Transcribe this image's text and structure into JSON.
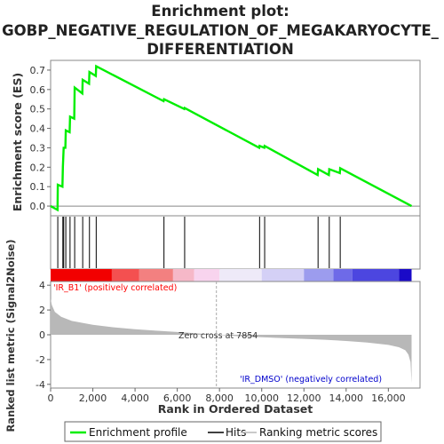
{
  "title_lines": [
    "Enrichment plot:",
    "GOBP_NEGATIVE_REGULATION_OF_MEGAKARYOCYTE_",
    "DIFFERENTIATION"
  ],
  "colors": {
    "es_line": "#00ee00",
    "hits": "#000000",
    "pos_label": "#ff0000",
    "neg_label": "#0000cc",
    "metric_fill": "#b8b8b8",
    "zero_cross_line": "#aaaaaa"
  },
  "legend": {
    "items": [
      {
        "label": "Enrichment profile",
        "kind": "line",
        "color": "#00ee00"
      },
      {
        "label": "Hits",
        "kind": "line",
        "color": "#000000"
      },
      {
        "label": "Ranking metric scores",
        "kind": "line",
        "color": "#b8b8b8"
      }
    ]
  },
  "chart_data": [
    {
      "type": "line",
      "name": "enrichment-profile",
      "ylabel": "Enrichment score (ES)",
      "xlim": [
        0,
        17500
      ],
      "ylim": [
        -0.05,
        0.75
      ],
      "yticks": [
        0.0,
        0.1,
        0.2,
        0.3,
        0.4,
        0.5,
        0.6,
        0.7
      ],
      "ytick_labels": [
        "0.0",
        "0.1",
        "0.2",
        "0.3",
        "0.4",
        "0.5",
        "0.6",
        "0.7"
      ],
      "points": [
        [
          0,
          0.0
        ],
        [
          330,
          -0.02
        ],
        [
          340,
          0.11
        ],
        [
          560,
          0.1
        ],
        [
          580,
          0.2
        ],
        [
          620,
          0.3
        ],
        [
          700,
          0.3
        ],
        [
          720,
          0.39
        ],
        [
          900,
          0.38
        ],
        [
          920,
          0.46
        ],
        [
          1120,
          0.45
        ],
        [
          1140,
          0.61
        ],
        [
          1500,
          0.58
        ],
        [
          1520,
          0.65
        ],
        [
          1820,
          0.63
        ],
        [
          1840,
          0.69
        ],
        [
          2140,
          0.67
        ],
        [
          2160,
          0.72
        ],
        [
          5350,
          0.54
        ],
        [
          5370,
          0.55
        ],
        [
          6330,
          0.5
        ],
        [
          6350,
          0.505
        ],
        [
          9880,
          0.3
        ],
        [
          9900,
          0.31
        ],
        [
          10120,
          0.3
        ],
        [
          10140,
          0.31
        ],
        [
          12650,
          0.16
        ],
        [
          12670,
          0.19
        ],
        [
          13180,
          0.16
        ],
        [
          13200,
          0.19
        ],
        [
          13700,
          0.17
        ],
        [
          13720,
          0.195
        ],
        [
          17100,
          0.0
        ]
      ]
    },
    {
      "type": "scatter",
      "name": "hits",
      "x": [
        340,
        580,
        620,
        720,
        920,
        1140,
        1520,
        1840,
        2160,
        5370,
        6350,
        9900,
        10140,
        12670,
        13200,
        13720
      ]
    },
    {
      "type": "area",
      "name": "ranking-metric",
      "xlabel": "Rank in Ordered Dataset",
      "ylabel": "Ranked list metric (Signal2Noise)",
      "xlim": [
        0,
        17500
      ],
      "ylim": [
        -4.3,
        4.3
      ],
      "yticks": [
        -4,
        -2,
        0,
        2,
        4
      ],
      "ytick_labels": [
        "-4",
        "-2",
        "0",
        "2",
        "4"
      ],
      "xticks": [
        0,
        2000,
        4000,
        6000,
        8000,
        10000,
        12000,
        14000,
        16000
      ],
      "xtick_labels": [
        "0",
        "2,000",
        "4,000",
        "6,000",
        "8,000",
        "10,000",
        "12,000",
        "14,000",
        "16,000"
      ],
      "points": [
        [
          0,
          2.9
        ],
        [
          60,
          2.4
        ],
        [
          200,
          1.85
        ],
        [
          500,
          1.45
        ],
        [
          1000,
          1.12
        ],
        [
          2000,
          0.8
        ],
        [
          3000,
          0.6
        ],
        [
          4000,
          0.45
        ],
        [
          5000,
          0.33
        ],
        [
          6000,
          0.22
        ],
        [
          7000,
          0.11
        ],
        [
          7854,
          0.0
        ],
        [
          9000,
          -0.12
        ],
        [
          10000,
          -0.2
        ],
        [
          11000,
          -0.27
        ],
        [
          12000,
          -0.33
        ],
        [
          13000,
          -0.4
        ],
        [
          14000,
          -0.5
        ],
        [
          15000,
          -0.62
        ],
        [
          16000,
          -0.82
        ],
        [
          16500,
          -1.0
        ],
        [
          16800,
          -1.25
        ],
        [
          16950,
          -1.6
        ],
        [
          17050,
          -2.2
        ],
        [
          17100,
          -3.9
        ]
      ],
      "zero_cross_x": 7854,
      "zero_cross_label": "Zero cross at 7854",
      "pos_label": "'IR_B1' (positively correlated)",
      "neg_label": "'IR_DMSO' (negatively correlated)"
    },
    {
      "type": "heatmap",
      "name": "rank-colorbar",
      "segments": [
        {
          "from": 0,
          "to": 2900,
          "color": "#f20000"
        },
        {
          "from": 2900,
          "to": 4200,
          "color": "#f45050"
        },
        {
          "from": 4200,
          "to": 5800,
          "color": "#f38080"
        },
        {
          "from": 5800,
          "to": 6800,
          "color": "#f6b8c8"
        },
        {
          "from": 6800,
          "to": 8000,
          "color": "#f8d4ee"
        },
        {
          "from": 8000,
          "to": 10000,
          "color": "#eeeaf8"
        },
        {
          "from": 10000,
          "to": 12000,
          "color": "#d4d0f6"
        },
        {
          "from": 12000,
          "to": 13400,
          "color": "#9c9cee"
        },
        {
          "from": 13400,
          "to": 14300,
          "color": "#6e6ae8"
        },
        {
          "from": 14300,
          "to": 16500,
          "color": "#4c46e0"
        },
        {
          "from": 16500,
          "to": 17100,
          "color": "#1a0ac8"
        }
      ]
    }
  ]
}
